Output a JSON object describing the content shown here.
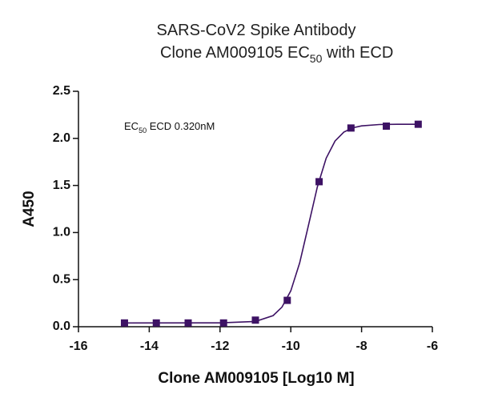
{
  "chart_data": {
    "type": "scatter",
    "title": "SARS-CoV2 Spike Antibody",
    "subtitle": [
      "Clone AM009105 EC",
      "50",
      " with ECD"
    ],
    "annotation": [
      "EC",
      "50",
      " ECD 0.320nM"
    ],
    "x_label": "Clone AM009105 [Log10 M]",
    "y_label": "A450",
    "x": [
      -14.7,
      -13.8,
      -12.9,
      -11.9,
      -11.0,
      -10.1,
      -9.2,
      -8.3,
      -7.3,
      -6.4
    ],
    "series": [
      {
        "color": "#3d1264",
        "marker": "square",
        "values": [
          0.04,
          0.04,
          0.04,
          0.04,
          0.07,
          0.28,
          1.54,
          2.11,
          2.13,
          2.15
        ]
      },
      {
        "color": "#3d1264",
        "marker": "line",
        "x": [
          -14.7,
          -12,
          -11,
          -10.5,
          -10.25,
          -10,
          -9.75,
          -9.5,
          -9.25,
          -9,
          -8.75,
          -8.5,
          -8.25,
          -8,
          -7.5,
          -7,
          -6.4
        ],
        "values": [
          0.04,
          0.041,
          0.056,
          0.118,
          0.208,
          0.381,
          0.677,
          1.078,
          1.484,
          1.79,
          1.972,
          2.067,
          2.112,
          2.133,
          2.147,
          2.15,
          2.15
        ]
      }
    ],
    "xlim": [
      -16,
      -6
    ],
    "xticks": [
      -16,
      -14,
      -12,
      -10,
      -8,
      -6
    ],
    "ylim": [
      0,
      2.5
    ],
    "yticks": [
      {
        "value": 0,
        "label": "0.0"
      },
      0.5,
      {
        "value": 1,
        "label": "1.0"
      },
      1.5,
      {
        "value": 2,
        "label": "2.0"
      },
      2.5
    ]
  }
}
